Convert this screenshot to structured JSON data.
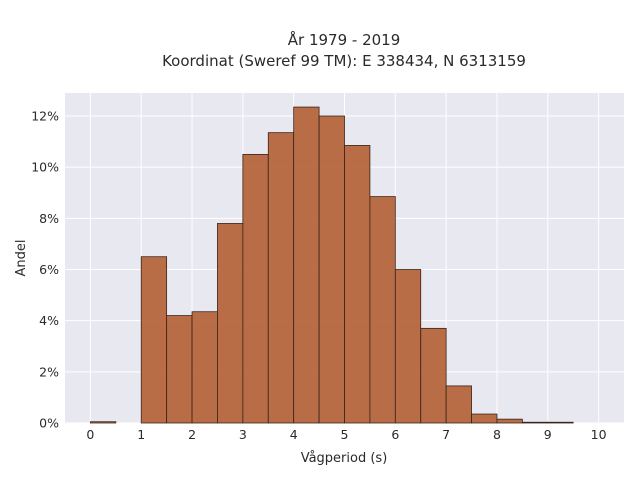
{
  "chart_data": {
    "type": "bar",
    "title": [
      "År 1979 - 2019",
      "Koordinat (Sweref 99 TM): E 338434, N 6313159"
    ],
    "xlabel": "Vågperiod (s)",
    "ylabel": "Andel",
    "xlim": [
      -0.5,
      10.5
    ],
    "ylim": [
      0,
      12.9
    ],
    "x_ticks": [
      0,
      1,
      2,
      3,
      4,
      5,
      6,
      7,
      8,
      9,
      10
    ],
    "y_ticks": [
      0,
      2,
      4,
      6,
      8,
      10,
      12
    ],
    "y_tick_labels": [
      "0%",
      "2%",
      "4%",
      "6%",
      "8%",
      "10%",
      "12%"
    ],
    "bin_width": 0.5,
    "bins": [
      {
        "x0": 0.0,
        "value": 0.05
      },
      {
        "x0": 0.5,
        "value": 0.0
      },
      {
        "x0": 1.0,
        "value": 6.5
      },
      {
        "x0": 1.5,
        "value": 4.2
      },
      {
        "x0": 2.0,
        "value": 4.35
      },
      {
        "x0": 2.5,
        "value": 7.8
      },
      {
        "x0": 3.0,
        "value": 10.5
      },
      {
        "x0": 3.5,
        "value": 11.35
      },
      {
        "x0": 4.0,
        "value": 12.35
      },
      {
        "x0": 4.5,
        "value": 12.0
      },
      {
        "x0": 5.0,
        "value": 10.85
      },
      {
        "x0": 5.5,
        "value": 8.85
      },
      {
        "x0": 6.0,
        "value": 6.0
      },
      {
        "x0": 6.5,
        "value": 3.7
      },
      {
        "x0": 7.0,
        "value": 1.45
      },
      {
        "x0": 7.5,
        "value": 0.35
      },
      {
        "x0": 8.0,
        "value": 0.15
      },
      {
        "x0": 8.5,
        "value": 0.03
      },
      {
        "x0": 9.0,
        "value": 0.03
      },
      {
        "x0": 9.5,
        "value": 0.0
      }
    ],
    "colors": {
      "bar_fill": "#B5663C",
      "bar_edge": "#3a2418",
      "plot_background": "#E8E8F0",
      "grid": "#ffffff"
    },
    "grid": true,
    "legend": "none"
  }
}
